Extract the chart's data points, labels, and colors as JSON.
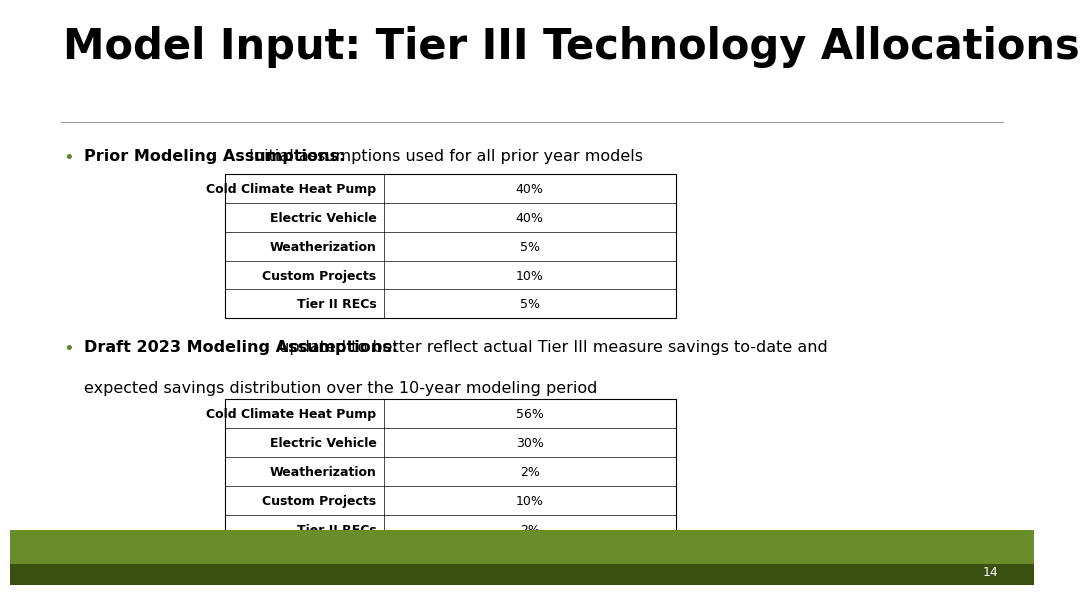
{
  "title": "Model Input: Tier III Technology Allocations",
  "title_fontsize": 30,
  "background_color": "#ffffff",
  "title_color": "#000000",
  "separator_color": "#999999",
  "bullet_color": "#5a8a2f",
  "bullet1_bold": "Prior Modeling Assumptions:",
  "bullet1_normal": " Initial assumptions used for all prior year models",
  "bullet2_bold": "Draft 2023 Modeling Assumptions:",
  "bullet2_normal_line1": " updated to better reflect actual Tier III measure savings to-date and",
  "bullet2_normal_line2": "expected savings distribution over the 10-year modeling period",
  "table1_rows": [
    [
      "Cold Climate Heat Pump",
      "40%"
    ],
    [
      "Electric Vehicle",
      "40%"
    ],
    [
      "Weatherization",
      "5%"
    ],
    [
      "Custom Projects",
      "10%"
    ],
    [
      "Tier II RECs",
      "5%"
    ]
  ],
  "table2_rows": [
    [
      "Cold Climate Heat Pump",
      "56%"
    ],
    [
      "Electric Vehicle",
      "30%"
    ],
    [
      "Weatherization",
      "2%"
    ],
    [
      "Custom Projects",
      "10%"
    ],
    [
      "Tier II RECs",
      "2%"
    ]
  ],
  "table_border_color": "#000000",
  "table_fontsize": 9,
  "bullet_fontsize": 11.5,
  "footer_green_color": "#6a8c2a",
  "footer_dark_color": "#3a5010",
  "page_number": "14",
  "page_num_color": "#ffffff",
  "page_num_fontsize": 9
}
